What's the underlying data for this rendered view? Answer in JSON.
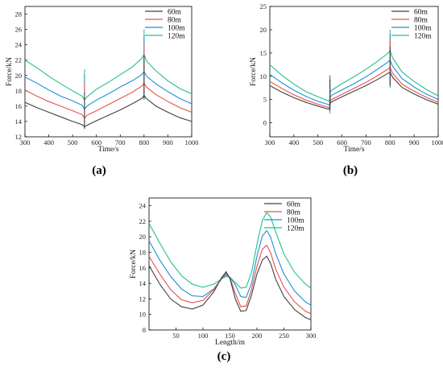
{
  "colors": {
    "60m": "#404040",
    "80m": "#e8504a",
    "100m": "#1e8fd8",
    "120m": "#22c08a"
  },
  "chart_data": [
    {
      "panel": "(a)",
      "type": "line",
      "xlabel": "Time/s",
      "ylabel": "Force/kN",
      "xlim": [
        300,
        1000
      ],
      "ylim": [
        12,
        29
      ],
      "xticks": [
        300,
        400,
        500,
        600,
        700,
        800,
        900,
        1000
      ],
      "yticks": [
        12,
        14,
        16,
        18,
        20,
        22,
        24,
        26,
        28
      ],
      "legend_position": "top-right",
      "x": [
        300,
        350,
        400,
        450,
        500,
        540,
        550,
        560,
        600,
        650,
        700,
        750,
        790,
        800,
        810,
        850,
        900,
        950,
        1000
      ],
      "series": [
        {
          "name": "60m",
          "values": [
            16.5,
            15.8,
            15.2,
            14.6,
            14.0,
            13.6,
            13.3,
            13.5,
            14.1,
            14.8,
            15.5,
            16.3,
            17.0,
            17.4,
            17.0,
            16.0,
            15.2,
            14.5,
            14.0
          ]
        },
        {
          "name": "80m",
          "values": [
            18.1,
            17.3,
            16.6,
            16.0,
            15.4,
            14.9,
            14.4,
            14.8,
            15.4,
            16.2,
            17.0,
            17.8,
            18.6,
            19.0,
            18.5,
            17.5,
            16.6,
            15.8,
            15.2
          ]
        },
        {
          "name": "100m",
          "values": [
            19.8,
            19.0,
            18.1,
            17.3,
            16.7,
            16.1,
            15.6,
            16.0,
            16.8,
            17.6,
            18.5,
            19.3,
            20.1,
            20.5,
            19.9,
            18.9,
            17.9,
            17.0,
            16.3
          ]
        },
        {
          "name": "120m",
          "values": [
            22.0,
            21.0,
            19.9,
            18.9,
            18.0,
            17.3,
            16.8,
            17.2,
            18.2,
            19.1,
            20.1,
            21.1,
            22.2,
            22.8,
            21.9,
            20.6,
            19.3,
            18.3,
            17.6
          ]
        }
      ],
      "spikes": [
        {
          "x": 550,
          "peak": 20.8,
          "low": 13.0
        },
        {
          "x": 800,
          "peak": 26.0,
          "low": 16.8
        }
      ]
    },
    {
      "panel": "(b)",
      "type": "line",
      "xlabel": "Time/s",
      "ylabel": "Force/kN",
      "xlim": [
        300,
        1000
      ],
      "ylim": [
        -3,
        25
      ],
      "xticks": [
        300,
        400,
        500,
        600,
        700,
        800,
        900,
        1000
      ],
      "yticks": [
        0,
        5,
        10,
        15,
        20,
        25
      ],
      "legend_position": "top-right",
      "x": [
        300,
        350,
        400,
        450,
        500,
        540,
        548,
        552,
        560,
        600,
        650,
        700,
        750,
        790,
        800,
        810,
        850,
        900,
        950,
        1000
      ],
      "series": [
        {
          "name": "60m",
          "values": [
            8.0,
            6.6,
            5.4,
            4.4,
            3.6,
            3.0,
            2.9,
            4.3,
            4.6,
            5.6,
            6.8,
            8.0,
            9.4,
            10.6,
            10.9,
            9.8,
            7.6,
            6.2,
            5.0,
            4.0
          ]
        },
        {
          "name": "80m",
          "values": [
            8.9,
            7.4,
            6.0,
            4.9,
            4.0,
            3.4,
            3.2,
            4.8,
            5.1,
            6.1,
            7.4,
            8.7,
            10.2,
            11.5,
            11.9,
            10.7,
            8.3,
            6.8,
            5.5,
            4.4
          ]
        },
        {
          "name": "100m",
          "values": [
            10.4,
            8.6,
            7.0,
            5.7,
            4.6,
            4.0,
            3.8,
            5.6,
            6.0,
            7.1,
            8.4,
            9.9,
            11.6,
            13.0,
            13.5,
            12.2,
            9.5,
            7.7,
            6.2,
            5.0
          ]
        },
        {
          "name": "120m",
          "values": [
            12.5,
            10.2,
            8.3,
            6.7,
            5.6,
            4.8,
            4.6,
            6.7,
            7.1,
            8.4,
            9.9,
            11.5,
            13.3,
            14.9,
            15.5,
            14.0,
            10.9,
            8.9,
            7.2,
            5.8
          ]
        }
      ],
      "spikes": [
        {
          "x": 550,
          "peak": 10.2,
          "low": 2.0
        },
        {
          "x": 800,
          "peak": 20.0,
          "low": 7.5
        }
      ]
    },
    {
      "panel": "(c)",
      "type": "line",
      "xlabel": "Length/m",
      "ylabel": "Force/kN",
      "xlim": [
        0,
        300
      ],
      "ylim": [
        8,
        25
      ],
      "xticks": [
        50,
        100,
        150,
        200,
        250,
        300
      ],
      "yticks": [
        8,
        10,
        12,
        14,
        16,
        18,
        20,
        22,
        24
      ],
      "legend_position": "top-right",
      "x": [
        0,
        20,
        40,
        60,
        80,
        100,
        120,
        135,
        143,
        150,
        160,
        170,
        180,
        190,
        200,
        210,
        218,
        225,
        235,
        250,
        270,
        290,
        300
      ],
      "series": [
        {
          "name": "60m",
          "values": [
            16.3,
            13.9,
            12.0,
            11.0,
            10.7,
            11.2,
            12.9,
            14.8,
            15.5,
            14.6,
            12.0,
            10.4,
            10.5,
            12.5,
            15.2,
            17.0,
            17.5,
            16.6,
            14.5,
            12.3,
            10.6,
            9.6,
            9.3
          ]
        },
        {
          "name": "80m",
          "values": [
            17.5,
            15.2,
            13.2,
            11.9,
            11.5,
            11.8,
            13.2,
            14.7,
            15.3,
            14.7,
            12.7,
            11.0,
            11.1,
            13.2,
            16.2,
            18.4,
            18.9,
            18.0,
            15.8,
            13.5,
            11.6,
            10.4,
            10.1
          ]
        },
        {
          "name": "100m",
          "values": [
            19.5,
            17.0,
            14.9,
            13.3,
            12.4,
            12.3,
            13.3,
            14.6,
            15.1,
            14.8,
            13.8,
            12.3,
            12.2,
            14.0,
            17.5,
            20.1,
            20.8,
            20.0,
            17.8,
            15.2,
            13.0,
            11.6,
            11.2
          ]
        },
        {
          "name": "120m",
          "values": [
            21.7,
            19.2,
            16.8,
            15.0,
            13.9,
            13.5,
            13.9,
            14.6,
            14.9,
            14.8,
            14.1,
            13.4,
            13.5,
            15.4,
            19.0,
            22.1,
            23.1,
            22.6,
            20.6,
            17.8,
            15.4,
            13.9,
            13.4
          ]
        }
      ],
      "spikes": []
    }
  ]
}
